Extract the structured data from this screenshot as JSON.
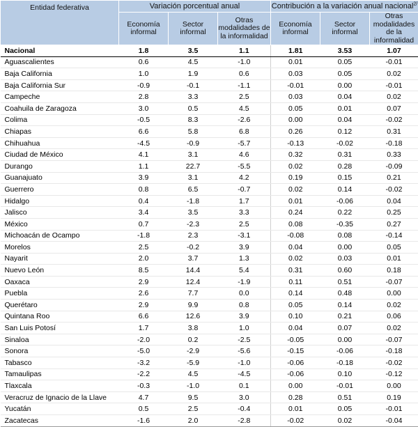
{
  "header": {
    "entity": "Entidad federativa",
    "group1": "Variación porcentual anual",
    "group2": "Contribución a la variación anual nacional",
    "group2_sup": "2/",
    "subcols": [
      "Economía informal",
      "Sector informal",
      "Otras modalidades de la informalidad",
      "Economía informal",
      "Sector informal",
      "Otras modalidades de la informalidad"
    ]
  },
  "rows": [
    {
      "name": "Nacional",
      "v": [
        "1.8",
        "3.5",
        "1.1",
        "1.81",
        "3.53",
        "1.07"
      ]
    },
    {
      "name": "Aguascalientes",
      "v": [
        "0.6",
        "4.5",
        "-1.0",
        "0.01",
        "0.05",
        "-0.01"
      ]
    },
    {
      "name": "Baja California",
      "v": [
        "1.0",
        "1.9",
        "0.6",
        "0.03",
        "0.05",
        "0.02"
      ]
    },
    {
      "name": "Baja California Sur",
      "v": [
        "-0.9",
        "-0.1",
        "-1.1",
        "-0.01",
        "0.00",
        "-0.01"
      ]
    },
    {
      "name": "Campeche",
      "v": [
        "2.8",
        "3.3",
        "2.5",
        "0.03",
        "0.04",
        "0.02"
      ]
    },
    {
      "name": "Coahuila de Zaragoza",
      "v": [
        "3.0",
        "0.5",
        "4.5",
        "0.05",
        "0.01",
        "0.07"
      ]
    },
    {
      "name": "Colima",
      "v": [
        "-0.5",
        "8.3",
        "-2.6",
        "0.00",
        "0.04",
        "-0.02"
      ]
    },
    {
      "name": "Chiapas",
      "v": [
        "6.6",
        "5.8",
        "6.8",
        "0.26",
        "0.12",
        "0.31"
      ]
    },
    {
      "name": "Chihuahua",
      "v": [
        "-4.5",
        "-0.9",
        "-5.7",
        "-0.13",
        "-0.02",
        "-0.18"
      ]
    },
    {
      "name": "Ciudad de México",
      "v": [
        "4.1",
        "3.1",
        "4.6",
        "0.32",
        "0.31",
        "0.33"
      ]
    },
    {
      "name": "Durango",
      "v": [
        "1.1",
        "22.7",
        "-5.5",
        "0.02",
        "0.28",
        "-0.09"
      ]
    },
    {
      "name": "Guanajuato",
      "v": [
        "3.9",
        "3.1",
        "4.2",
        "0.19",
        "0.15",
        "0.21"
      ]
    },
    {
      "name": "Guerrero",
      "v": [
        "0.8",
        "6.5",
        "-0.7",
        "0.02",
        "0.14",
        "-0.02"
      ]
    },
    {
      "name": "Hidalgo",
      "v": [
        "0.4",
        "-1.8",
        "1.7",
        "0.01",
        "-0.06",
        "0.04"
      ]
    },
    {
      "name": "Jalisco",
      "v": [
        "3.4",
        "3.5",
        "3.3",
        "0.24",
        "0.22",
        "0.25"
      ]
    },
    {
      "name": "México",
      "v": [
        "0.7",
        "-2.3",
        "2.5",
        "0.08",
        "-0.35",
        "0.27"
      ]
    },
    {
      "name": "Michoacán de Ocampo",
      "v": [
        "-1.8",
        "2.3",
        "-3.1",
        "-0.08",
        "0.08",
        "-0.14"
      ]
    },
    {
      "name": "Morelos",
      "v": [
        "2.5",
        "-0.2",
        "3.9",
        "0.04",
        "0.00",
        "0.05"
      ]
    },
    {
      "name": "Nayarit",
      "v": [
        "2.0",
        "3.7",
        "1.3",
        "0.02",
        "0.03",
        "0.01"
      ]
    },
    {
      "name": "Nuevo León",
      "v": [
        "8.5",
        "14.4",
        "5.4",
        "0.31",
        "0.60",
        "0.18"
      ]
    },
    {
      "name": "Oaxaca",
      "v": [
        "2.9",
        "12.4",
        "-1.9",
        "0.11",
        "0.51",
        "-0.07"
      ]
    },
    {
      "name": "Puebla",
      "v": [
        "2.6",
        "7.7",
        "0.0",
        "0.14",
        "0.48",
        "0.00"
      ]
    },
    {
      "name": "Querétaro",
      "v": [
        "2.9",
        "9.9",
        "0.8",
        "0.05",
        "0.14",
        "0.02"
      ]
    },
    {
      "name": "Quintana Roo",
      "v": [
        "6.6",
        "12.6",
        "3.9",
        "0.10",
        "0.21",
        "0.06"
      ]
    },
    {
      "name": "San Luis Potosí",
      "v": [
        "1.7",
        "3.8",
        "1.0",
        "0.04",
        "0.07",
        "0.02"
      ]
    },
    {
      "name": "Sinaloa",
      "v": [
        "-2.0",
        "0.2",
        "-2.5",
        "-0.05",
        "0.00",
        "-0.07"
      ]
    },
    {
      "name": "Sonora",
      "v": [
        "-5.0",
        "-2.9",
        "-5.6",
        "-0.15",
        "-0.06",
        "-0.18"
      ]
    },
    {
      "name": "Tabasco",
      "v": [
        "-3.2",
        "-5.9",
        "-1.0",
        "-0.06",
        "-0.18",
        "-0.02"
      ]
    },
    {
      "name": "Tamaulipas",
      "v": [
        "-2.2",
        "4.5",
        "-4.5",
        "-0.06",
        "0.10",
        "-0.12"
      ]
    },
    {
      "name": "Tlaxcala",
      "v": [
        "-0.3",
        "-1.0",
        "0.1",
        "0.00",
        "-0.01",
        "0.00"
      ]
    },
    {
      "name": "Veracruz de Ignacio de la Llave",
      "v": [
        "4.7",
        "9.5",
        "3.0",
        "0.28",
        "0.51",
        "0.19"
      ]
    },
    {
      "name": "Yucatán",
      "v": [
        "0.5",
        "2.5",
        "-0.4",
        "0.01",
        "0.05",
        "-0.01"
      ]
    },
    {
      "name": "Zacatecas",
      "v": [
        "-1.6",
        "2.0",
        "-2.8",
        "-0.02",
        "0.02",
        "-0.04"
      ]
    }
  ]
}
